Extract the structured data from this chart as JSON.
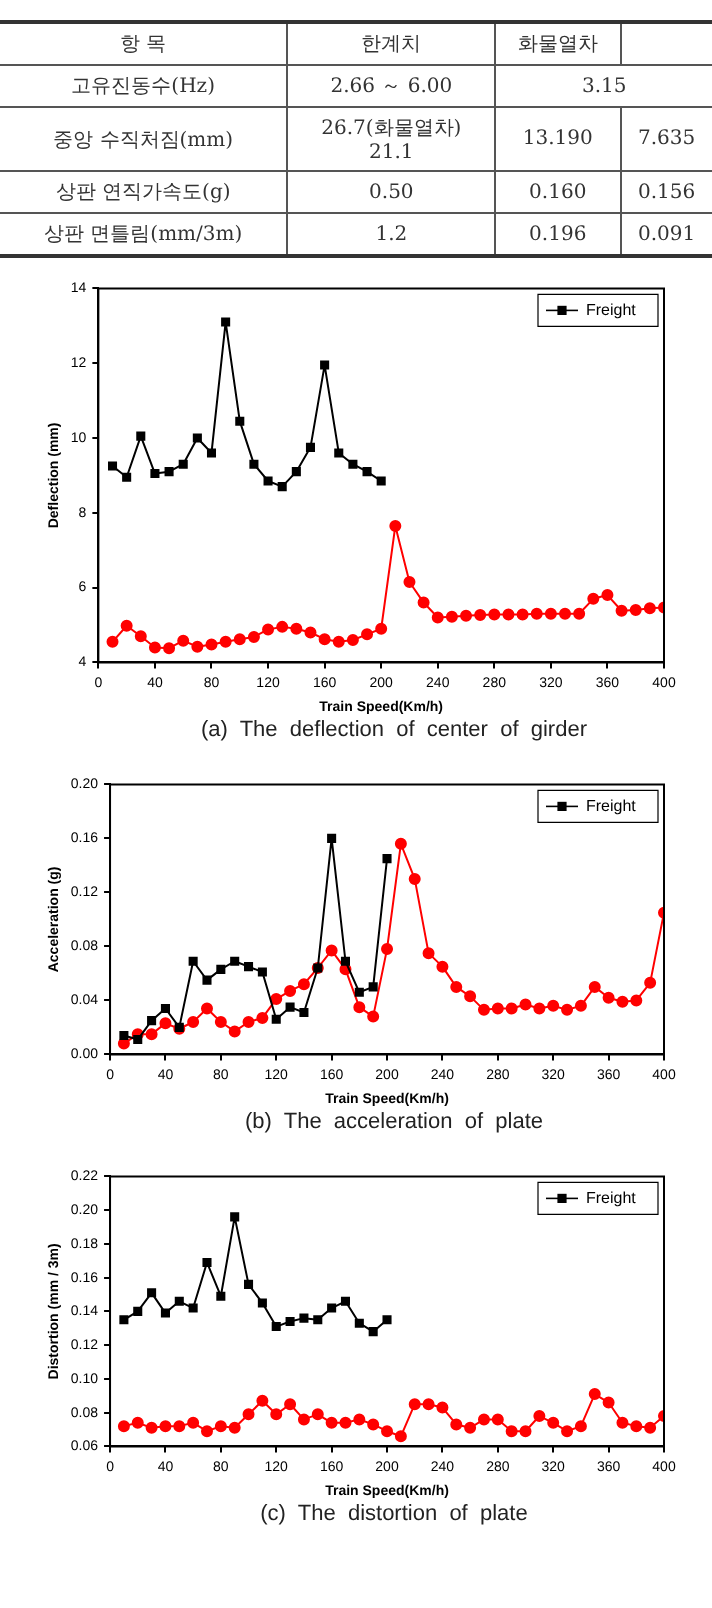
{
  "chart_data": [
    {
      "type": "other",
      "categories": [
        "항 목",
        "한계치",
        "화물열차",
        null
      ],
      "y_categories": [
        "고유진동수(Hz)",
        "중앙 수직처짐(mm)",
        "상판 연직가속도(g)",
        "상판 면틀림(mm/3m)"
      ],
      "cell_labels": [
        [
          "2.66 ～ 6.00",
          "3.15",
          null
        ],
        [
          "26.7(화물열차)\n21.1",
          "13.190",
          "7.635"
        ],
        [
          "0.50",
          "0.160",
          "0.156"
        ],
        [
          "1.2",
          "0.196",
          "0.091"
        ]
      ]
    },
    {
      "type": "line",
      "title": "(a)  The  deflection  of  center  of  girder",
      "xlabel": "Train Speed(Km/h)",
      "ylabel": "Deflection (mm)",
      "xlim": [
        0,
        400
      ],
      "xticks": [
        0,
        40,
        80,
        120,
        160,
        200,
        240,
        280,
        320,
        360,
        400
      ],
      "ylim": [
        4,
        14
      ],
      "yticks": [
        4,
        6,
        8,
        10,
        12,
        14
      ],
      "legend": "top right",
      "grid": false,
      "series": [
        {
          "name": "Freight",
          "color": "#000000",
          "marker": "square",
          "x": [
            10,
            20,
            30,
            40,
            50,
            60,
            70,
            80,
            90,
            100,
            110,
            120,
            130,
            140,
            150,
            160,
            170,
            180,
            190,
            200
          ],
          "values": [
            9.25,
            8.95,
            10.05,
            9.05,
            9.1,
            9.3,
            10.0,
            9.6,
            13.1,
            10.45,
            9.3,
            8.85,
            8.7,
            9.1,
            9.75,
            11.95,
            9.6,
            9.3,
            9.1,
            8.85
          ]
        },
        {
          "color": "#ff0000",
          "marker": "circle",
          "x": [
            10,
            20,
            30,
            40,
            50,
            60,
            70,
            80,
            90,
            100,
            110,
            120,
            130,
            140,
            150,
            160,
            170,
            180,
            190,
            200,
            210,
            220,
            230,
            240,
            250,
            260,
            270,
            280,
            290,
            300,
            310,
            320,
            330,
            340,
            350,
            360,
            370,
            380,
            390,
            400
          ],
          "values": [
            4.55,
            4.98,
            4.7,
            4.4,
            4.38,
            4.58,
            4.42,
            4.48,
            4.55,
            4.62,
            4.68,
            4.88,
            4.95,
            4.9,
            4.8,
            4.62,
            4.55,
            4.6,
            4.75,
            4.9,
            7.65,
            6.15,
            5.6,
            5.2,
            5.22,
            5.25,
            5.27,
            5.28,
            5.28,
            5.28,
            5.3,
            5.3,
            5.3,
            5.3,
            5.7,
            5.8,
            5.38,
            5.4,
            5.45,
            5.47
          ]
        }
      ]
    },
    {
      "type": "line",
      "title": "(b)  The  acceleration  of  plate",
      "xlabel": "Train Speed(Km/h)",
      "ylabel": "Acceleration (g)",
      "xlim": [
        0,
        400
      ],
      "xticks": [
        0,
        40,
        80,
        120,
        160,
        200,
        240,
        280,
        320,
        360,
        400
      ],
      "ylim": [
        0,
        0.2
      ],
      "yticks": [
        {
          "value": 0,
          "label": "0.00"
        },
        0.04,
        0.08,
        0.12,
        0.16,
        {
          "value": 0.2,
          "label": "0.20"
        }
      ],
      "legend": "top right",
      "grid": false,
      "series": [
        {
          "name": "Freight",
          "color": "#000000",
          "marker": "square",
          "x": [
            10,
            20,
            30,
            40,
            50,
            60,
            70,
            80,
            90,
            100,
            110,
            120,
            130,
            140,
            150,
            160,
            170,
            180,
            190,
            200
          ],
          "values": [
            0.014,
            0.011,
            0.025,
            0.034,
            0.02,
            0.069,
            0.055,
            0.063,
            0.069,
            0.065,
            0.061,
            0.026,
            0.035,
            0.031,
            0.064,
            0.16,
            0.069,
            0.046,
            0.05,
            0.145
          ]
        },
        {
          "color": "#ff0000",
          "marker": "circle",
          "x": [
            10,
            20,
            30,
            40,
            50,
            60,
            70,
            80,
            90,
            100,
            110,
            120,
            130,
            140,
            150,
            160,
            170,
            180,
            190,
            200,
            210,
            220,
            230,
            240,
            250,
            260,
            270,
            280,
            290,
            300,
            310,
            320,
            330,
            340,
            350,
            360,
            370,
            380,
            390,
            400
          ],
          "values": [
            0.008,
            0.015,
            0.015,
            0.023,
            0.019,
            0.024,
            0.034,
            0.024,
            0.017,
            0.024,
            0.027,
            0.041,
            0.047,
            0.052,
            0.064,
            0.077,
            0.063,
            0.035,
            0.028,
            0.078,
            0.156,
            0.13,
            0.075,
            0.065,
            0.05,
            0.043,
            0.033,
            0.034,
            0.034,
            0.037,
            0.034,
            0.036,
            0.033,
            0.036,
            0.05,
            0.042,
            0.039,
            0.04,
            0.053,
            0.105
          ]
        }
      ]
    },
    {
      "type": "line",
      "title": "(c)  The  distortion  of  plate",
      "xlabel": "Train Speed(Km/h)",
      "ylabel": "Distortion (mm / 3m)",
      "xlim": [
        0,
        400
      ],
      "xticks": [
        0,
        40,
        80,
        120,
        160,
        200,
        240,
        280,
        320,
        360,
        400
      ],
      "ylim": [
        0.06,
        0.22
      ],
      "yticks": [
        0.06,
        0.08,
        {
          "value": 0.1,
          "label": "0.10"
        },
        0.12,
        0.14,
        0.16,
        0.18,
        {
          "value": 0.2,
          "label": "0.20"
        },
        0.22
      ],
      "legend": "top right",
      "grid": false,
      "series": [
        {
          "name": "Freight",
          "color": "#000000",
          "marker": "square",
          "x": [
            10,
            20,
            30,
            40,
            50,
            60,
            70,
            80,
            90,
            100,
            110,
            120,
            130,
            140,
            150,
            160,
            170,
            180,
            190,
            200
          ],
          "values": [
            0.135,
            0.14,
            0.151,
            0.139,
            0.146,
            0.142,
            0.169,
            0.149,
            0.196,
            0.156,
            0.145,
            0.131,
            0.134,
            0.136,
            0.135,
            0.142,
            0.146,
            0.133,
            0.128,
            0.135
          ]
        },
        {
          "color": "#ff0000",
          "marker": "circle",
          "x": [
            10,
            20,
            30,
            40,
            50,
            60,
            70,
            80,
            90,
            100,
            110,
            120,
            130,
            140,
            150,
            160,
            170,
            180,
            190,
            200,
            210,
            220,
            230,
            240,
            250,
            260,
            270,
            280,
            290,
            300,
            310,
            320,
            330,
            340,
            350,
            360,
            370,
            380,
            390,
            400
          ],
          "values": [
            0.072,
            0.074,
            0.071,
            0.072,
            0.072,
            0.074,
            0.069,
            0.072,
            0.071,
            0.079,
            0.087,
            0.079,
            0.085,
            0.076,
            0.079,
            0.074,
            0.074,
            0.076,
            0.073,
            0.069,
            0.066,
            0.085,
            0.085,
            0.083,
            0.073,
            0.071,
            0.076,
            0.076,
            0.069,
            0.069,
            0.078,
            0.074,
            0.069,
            0.072,
            0.091,
            0.086,
            0.074,
            0.072,
            0.071,
            0.078
          ]
        }
      ]
    }
  ]
}
